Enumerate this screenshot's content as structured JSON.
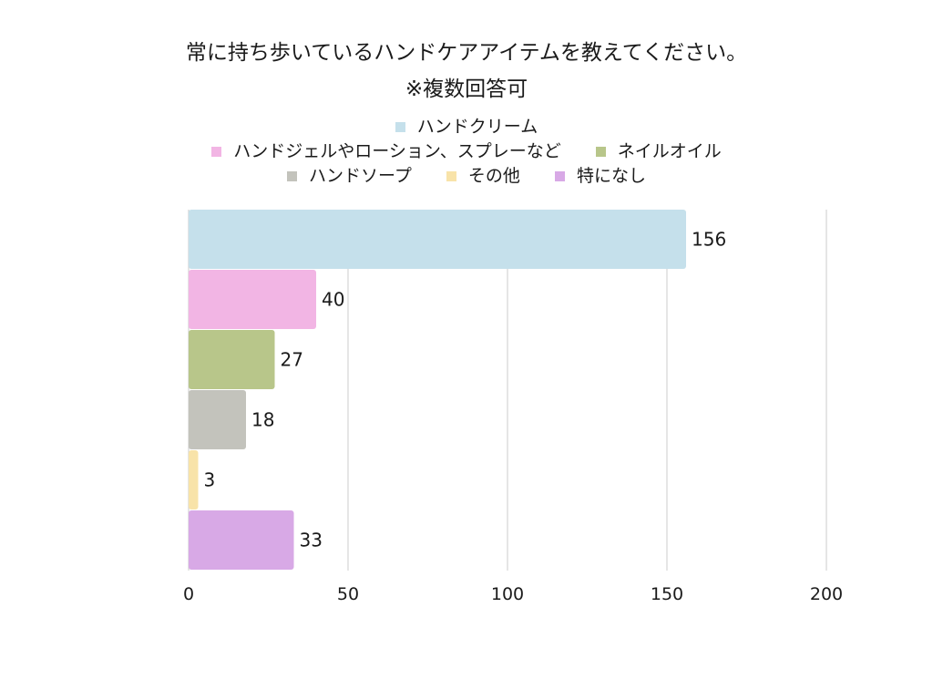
{
  "chart_data": {
    "type": "bar",
    "orientation": "horizontal",
    "title": "常に持ち歩いているハンドケアアイテムを教えてください。",
    "subtitle": "※複数回答可",
    "xlabel": "",
    "ylabel": "",
    "xlim": [
      0,
      200
    ],
    "ticks": [
      0,
      50,
      100,
      150,
      200
    ],
    "tick_labels": [
      "0",
      "50",
      "100",
      "150",
      "200"
    ],
    "grid": "vertical",
    "legend_position": "top",
    "categories": [
      "ハンドクリーム",
      "ハンドジェルやローション、スプレーなど",
      "ネイルオイル",
      "ハンドソープ",
      "その他",
      "特になし"
    ],
    "values": [
      156,
      40,
      27,
      18,
      3,
      33
    ],
    "value_labels": [
      "156",
      "40",
      "27",
      "18",
      "3",
      "33"
    ],
    "colors": [
      "#c5e0eb",
      "#f2b5e4",
      "#b8c68a",
      "#c3c3bc",
      "#f8e3a9",
      "#d8a9e6"
    ],
    "gridline_color": "#d4d4d4",
    "legend_rows": [
      [
        0
      ],
      [
        1,
        2
      ],
      [
        3,
        4,
        5
      ]
    ]
  }
}
